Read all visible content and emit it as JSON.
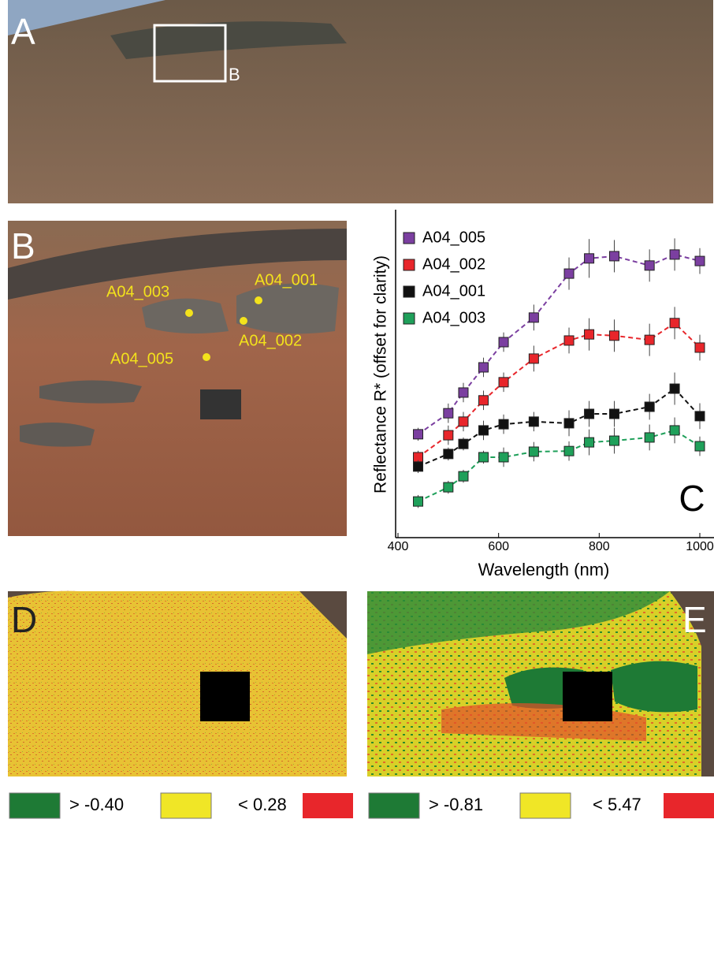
{
  "panels": {
    "A": {
      "label": "A",
      "box_label": "B"
    },
    "B": {
      "label": "B",
      "points": [
        "A04_003",
        "A04_001",
        "A04_002",
        "A04_005"
      ]
    },
    "D": {
      "label": "D",
      "legend": [
        "> -0.40",
        "< 0.28"
      ]
    },
    "E": {
      "label": "E",
      "legend": [
        "> -0.81",
        "< 5.47"
      ]
    }
  },
  "chart_data": {
    "type": "line",
    "label": "C",
    "x_label": "Wavelength (nm)",
    "y_label": "Reflectance R* (offset for clarity)",
    "x": [
      440,
      500,
      530,
      570,
      610,
      670,
      740,
      780,
      830,
      900,
      950,
      1000
    ],
    "xlim": [
      400,
      1000
    ],
    "xticks": [
      400,
      600,
      800,
      1000
    ],
    "ylim": [
      0,
      100
    ],
    "legend": "upper left",
    "series": [
      {
        "name": "A04_005",
        "color": "#7b3fa0",
        "values": [
          31.5,
          38.0,
          44.4,
          52.2,
          60.0,
          67.6,
          81.2,
          85.9,
          86.6,
          83.7,
          87.1,
          85.1
        ],
        "errors": [
          2,
          3,
          3,
          3,
          3,
          4,
          5,
          6,
          5,
          5,
          5,
          4
        ]
      },
      {
        "name": "A04_002",
        "color": "#e8262b",
        "values": [
          24.4,
          31.2,
          35.4,
          42.0,
          47.6,
          54.9,
          60.5,
          62.4,
          62.0,
          60.7,
          65.9,
          58.3
        ],
        "errors": [
          2,
          3,
          3,
          3,
          3,
          4,
          4,
          5,
          5,
          5,
          5,
          4
        ]
      },
      {
        "name": "A04_001",
        "color": "#111111",
        "values": [
          21.5,
          25.4,
          28.5,
          32.7,
          34.6,
          35.4,
          34.9,
          37.8,
          37.8,
          40.0,
          45.6,
          37.1
        ],
        "errors": [
          2,
          2,
          2,
          3,
          3,
          3,
          4,
          4,
          4,
          4,
          5,
          4
        ]
      },
      {
        "name": "A04_003",
        "color": "#1fa05a",
        "values": [
          10.7,
          15.1,
          18.5,
          24.4,
          24.4,
          26.1,
          26.3,
          29.0,
          29.5,
          30.5,
          32.7,
          27.8
        ],
        "errors": [
          2,
          2,
          2,
          2,
          3,
          3,
          3,
          4,
          4,
          4,
          4,
          3
        ]
      }
    ]
  }
}
